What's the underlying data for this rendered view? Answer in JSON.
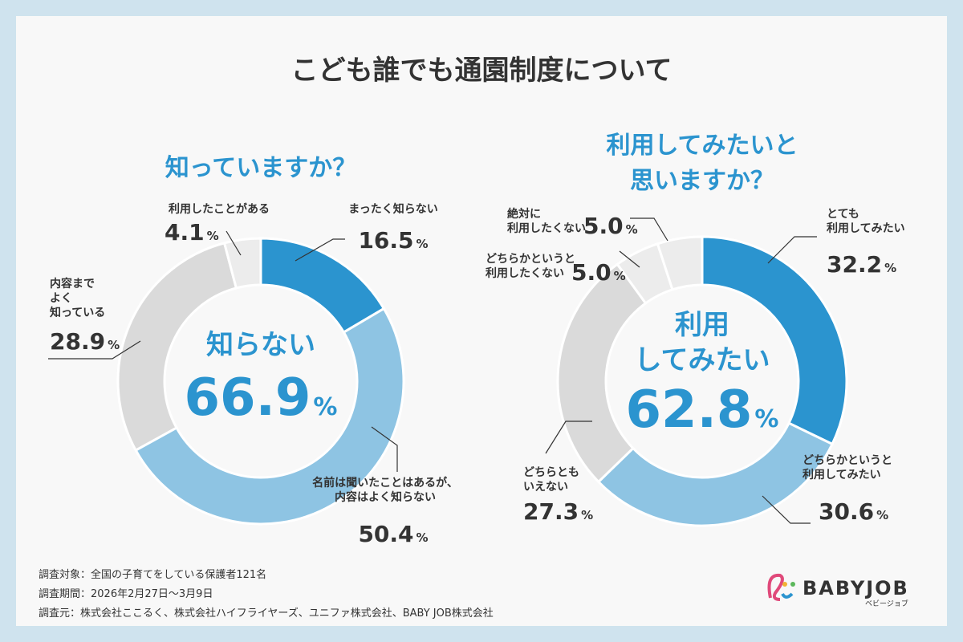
{
  "title": "こども誰でも通園制度について",
  "chart_data": [
    {
      "type": "donut",
      "title": "知っていますか？",
      "center_label": "知らない",
      "center_value": 66.9,
      "unit": "%",
      "categories": [
        "まったく知らない",
        "名前は聞いたことはあるが、\n内容はよく知らない",
        "内容まで\nよく\n知っている",
        "利用したことがある"
      ],
      "values": [
        16.5,
        50.4,
        28.9,
        4.1
      ],
      "colors": [
        "#2b94cf",
        "#8ec4e3",
        "#dadada",
        "#ececec"
      ]
    },
    {
      "type": "donut",
      "title": "利用してみたいと\n思いますか？",
      "center_label": "利用\nしてみたい",
      "center_value": 62.8,
      "unit": "%",
      "categories": [
        "とても\n利用してみたい",
        "どちらかというと\n利用してみたい",
        "どちらとも\nいえない",
        "どちらかというと\n利用したくない",
        "絶対に\n利用したくない"
      ],
      "values": [
        32.2,
        30.6,
        27.3,
        5.0,
        5.0
      ],
      "value_labels": [
        "32.2",
        "30.6",
        "27.3",
        "5.0",
        "5.0"
      ],
      "colors": [
        "#2b94cf",
        "#8ec4e3",
        "#dadada",
        "#ececec",
        "#ececec"
      ]
    }
  ],
  "footer": {
    "notes": [
      "調査対象：全国の子育てをしている保護者121名",
      "調査期間：2026年2月27日～3月9日",
      "調査元：株式会社ここるく、株式会社ハイフライヤーズ、ユニファ株式会社、BABY JOB株式会社"
    ],
    "logo": "BABYJOB",
    "logo_kana": "ベビージョブ"
  }
}
